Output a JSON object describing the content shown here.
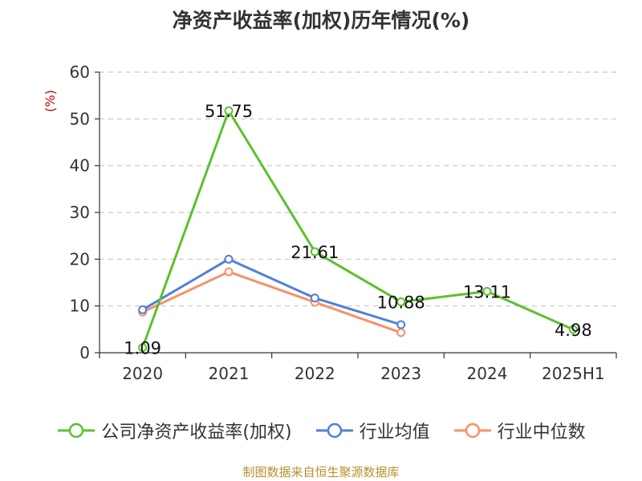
{
  "title": "净资产收益率(加权)历年情况(%)",
  "source_note": "制图数据来自恒生聚源数据库",
  "colors": {
    "series_roe": "#5cc12d",
    "series_industry_avg": "#4f7fd9",
    "series_industry_median": "#f5926a",
    "unit_label": "#cc0000",
    "grid": "#c8c8c8",
    "axis": "#333333"
  },
  "chart_data": {
    "type": "line",
    "title": "净资产收益率(加权)历年情况(%)",
    "ylabel": "(%)",
    "xlabel": "",
    "categories": [
      "2020",
      "2021",
      "2022",
      "2023",
      "2024",
      "2025H1"
    ],
    "ylim": [
      0,
      60
    ],
    "yticks": [
      0,
      10,
      20,
      30,
      40,
      50,
      60
    ],
    "grid": true,
    "legend_position": "bottom",
    "series": [
      {
        "name": "公司净资产收益率(加权)",
        "color": "#5cc12d",
        "values": [
          1.09,
          51.75,
          21.61,
          10.88,
          13.11,
          4.98
        ],
        "data_labels": [
          "1.09",
          "51.75",
          "21.61",
          "10.88",
          "13.11",
          "4.98"
        ]
      },
      {
        "name": "行业均值",
        "color": "#4f7fd9",
        "values": [
          9.2,
          20.0,
          11.7,
          6.0,
          null,
          null
        ]
      },
      {
        "name": "行业中位数",
        "color": "#f5926a",
        "values": [
          8.7,
          17.3,
          10.8,
          4.3,
          null,
          null
        ]
      }
    ]
  }
}
